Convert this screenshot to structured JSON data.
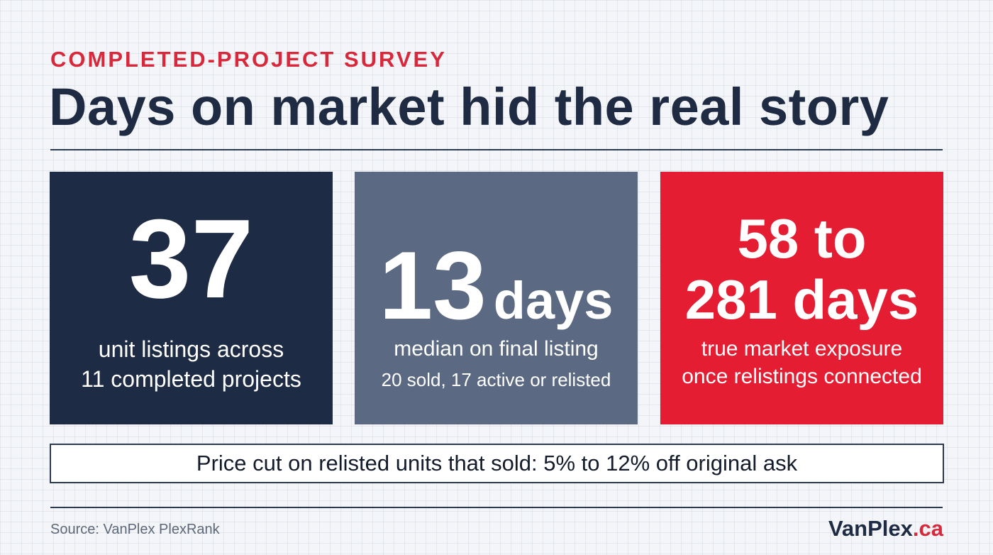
{
  "eyebrow": "COMPLETED-PROJECT SURVEY",
  "headline": "Days on market hid the real story",
  "cards": [
    {
      "value": "37",
      "desc_line1": "unit listings across",
      "desc_line2": "11 completed projects",
      "color": "#1e2b44"
    },
    {
      "value": "13",
      "unit": "days",
      "desc": "median on final listing",
      "sub": "20 sold, 17 active or relisted",
      "color": "#5b6a82"
    },
    {
      "value_line1": "58 to",
      "value_line2": "281 days",
      "desc_line1": "true market exposure",
      "desc_line2": "once relistings connected",
      "color": "#e51d32"
    }
  ],
  "callout": "Price cut on relisted units that sold: 5% to 12% off original ask",
  "source": "Source: VanPlex PlexRank",
  "brand": {
    "name": "VanPlex",
    "tld": ".ca"
  },
  "colors": {
    "accent": "#d8283b",
    "navy": "#1e2b42",
    "background": "#f3f5f8"
  }
}
